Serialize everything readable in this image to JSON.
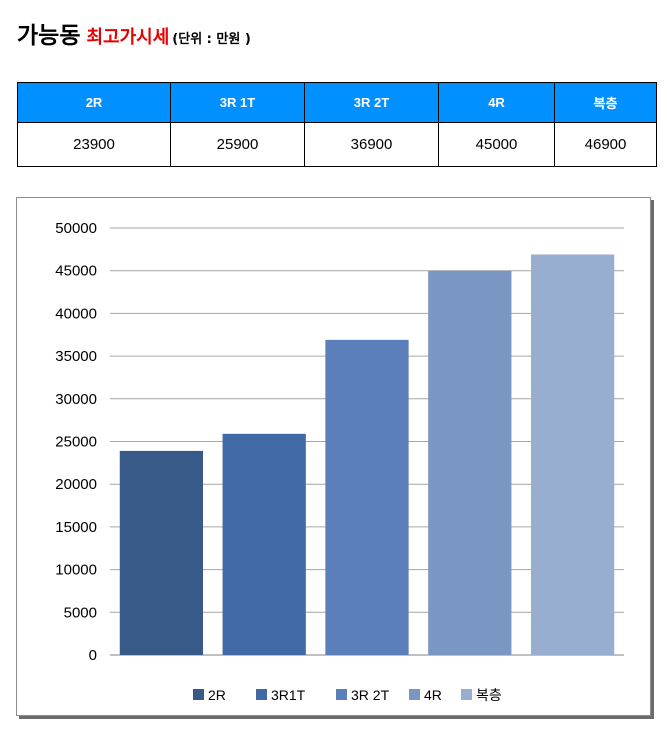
{
  "header": {
    "title": "가능동",
    "subtitle": "최고가시세",
    "unit": "(단위 : 만원 )"
  },
  "table": {
    "columns": [
      "2R",
      "3R 1T",
      "3R 2T",
      "4R",
      "복층"
    ],
    "values": [
      "23900",
      "25900",
      "36900",
      "45000",
      "46900"
    ]
  },
  "colors": {
    "header_bg": "#0090ff",
    "title_accent": "#e60000",
    "series": [
      "#385a89",
      "#4169a6",
      "#5a7fba",
      "#7a97c4",
      "#98aed1"
    ]
  },
  "chart_data": {
    "type": "bar",
    "title": "",
    "xlabel": "",
    "ylabel": "",
    "series": [
      {
        "name": "2R",
        "values": [
          23900
        ]
      },
      {
        "name": "3R1T",
        "values": [
          25900
        ]
      },
      {
        "name": "3R 2T",
        "values": [
          36900
        ]
      },
      {
        "name": "4R",
        "values": [
          45000
        ]
      },
      {
        "name": "복층",
        "values": [
          46900
        ]
      }
    ],
    "ylim": [
      0,
      50000
    ],
    "yticks": [
      "0",
      "5000",
      "10000",
      "15000",
      "20000",
      "25000",
      "30000",
      "35000",
      "40000",
      "45000",
      "50000"
    ],
    "grid": true,
    "legend": "bottom"
  }
}
